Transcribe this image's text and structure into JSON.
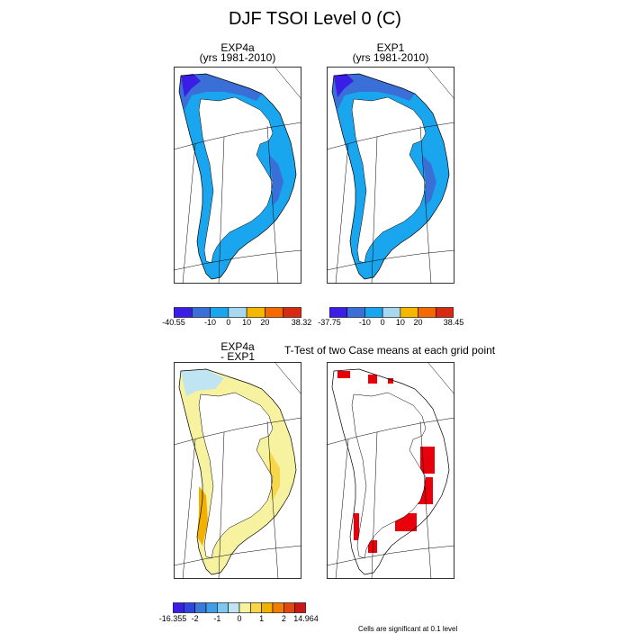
{
  "title": "DJF TSOI Level 0 (C)",
  "panels": {
    "exp4a": {
      "title_line1": "EXP4a",
      "title_line2": "(yrs 1981-2010)"
    },
    "exp1": {
      "title_line1": "EXP1",
      "title_line2": "(yrs 1981-2010)"
    },
    "diff": {
      "title_line1": "EXP4a",
      "title_line2": "- EXP1"
    },
    "ttest": {
      "title": "T-Test of two Case means at each grid point"
    }
  },
  "colorbars": {
    "exp4a": {
      "colors": [
        "#3a1ee6",
        "#3a6fd8",
        "#1aa6ee",
        "#a8d8f0",
        "#f5b800",
        "#f56a00",
        "#d62a12"
      ],
      "labels": [
        {
          "text": "-40.55",
          "pos": 0
        },
        {
          "text": "-10",
          "pos": 2
        },
        {
          "text": "0",
          "pos": 3
        },
        {
          "text": "10",
          "pos": 4
        },
        {
          "text": "20",
          "pos": 5
        },
        {
          "text": "38.32",
          "pos": 7
        }
      ]
    },
    "exp1": {
      "colors": [
        "#3a1ee6",
        "#3a6fd8",
        "#1aa6ee",
        "#a8d8f0",
        "#f5b800",
        "#f56a00",
        "#d62a12"
      ],
      "labels": [
        {
          "text": "-37.75",
          "pos": 0
        },
        {
          "text": "-10",
          "pos": 2
        },
        {
          "text": "0",
          "pos": 3
        },
        {
          "text": "10",
          "pos": 4
        },
        {
          "text": "20",
          "pos": 5
        },
        {
          "text": "38.45",
          "pos": 7
        }
      ]
    },
    "diff": {
      "colors": [
        "#3a1ee6",
        "#2f45e0",
        "#3a7ad8",
        "#3f9ee8",
        "#7cc8ef",
        "#bfe4f2",
        "#f7f2a0",
        "#f7d64a",
        "#f2b000",
        "#f07e00",
        "#e04a10",
        "#c81818"
      ],
      "labels": [
        {
          "text": "-16.355",
          "pos": 0
        },
        {
          "text": "-2",
          "pos": 2
        },
        {
          "text": "-1",
          "pos": 4
        },
        {
          "text": "0",
          "pos": 6
        },
        {
          "text": "1",
          "pos": 8
        },
        {
          "text": "2",
          "pos": 10
        },
        {
          "text": "14.964",
          "pos": 12
        }
      ]
    }
  },
  "footnote": "Cells are significant at 0.1 level",
  "chart_data": [
    {
      "type": "heatmap",
      "title": "EXP4a (yrs 1981-2010)",
      "variable": "DJF TSOI Level 0 (C)",
      "range": [
        -40.55,
        38.32
      ],
      "colorbar_ticks": [
        -40.55,
        -10,
        0,
        10,
        20,
        38.32
      ],
      "dominant_values": "-10 to 0 along coast, < -10 in north and east",
      "region": "Greenland"
    },
    {
      "type": "heatmap",
      "title": "EXP1 (yrs 1981-2010)",
      "variable": "DJF TSOI Level 0 (C)",
      "range": [
        -37.75,
        38.45
      ],
      "colorbar_ticks": [
        -37.75,
        -10,
        0,
        10,
        20,
        38.45
      ],
      "dominant_values": "-10 to 0 along coast, < -10 in north and east",
      "region": "Greenland"
    },
    {
      "type": "heatmap",
      "title": "EXP4a - EXP1",
      "range": [
        -16.355,
        14.964
      ],
      "colorbar_ticks": [
        -16.355,
        -2,
        -1,
        0,
        1,
        2,
        14.964
      ],
      "dominant_values": "0 to 2 mostly, up to >2 in southwest",
      "region": "Greenland"
    },
    {
      "type": "heatmap",
      "title": "T-Test of two Case means at each grid point",
      "values": "binary significance mask (red = significant)",
      "note": "Cells are significant at 0.1 level",
      "region": "Greenland"
    }
  ]
}
